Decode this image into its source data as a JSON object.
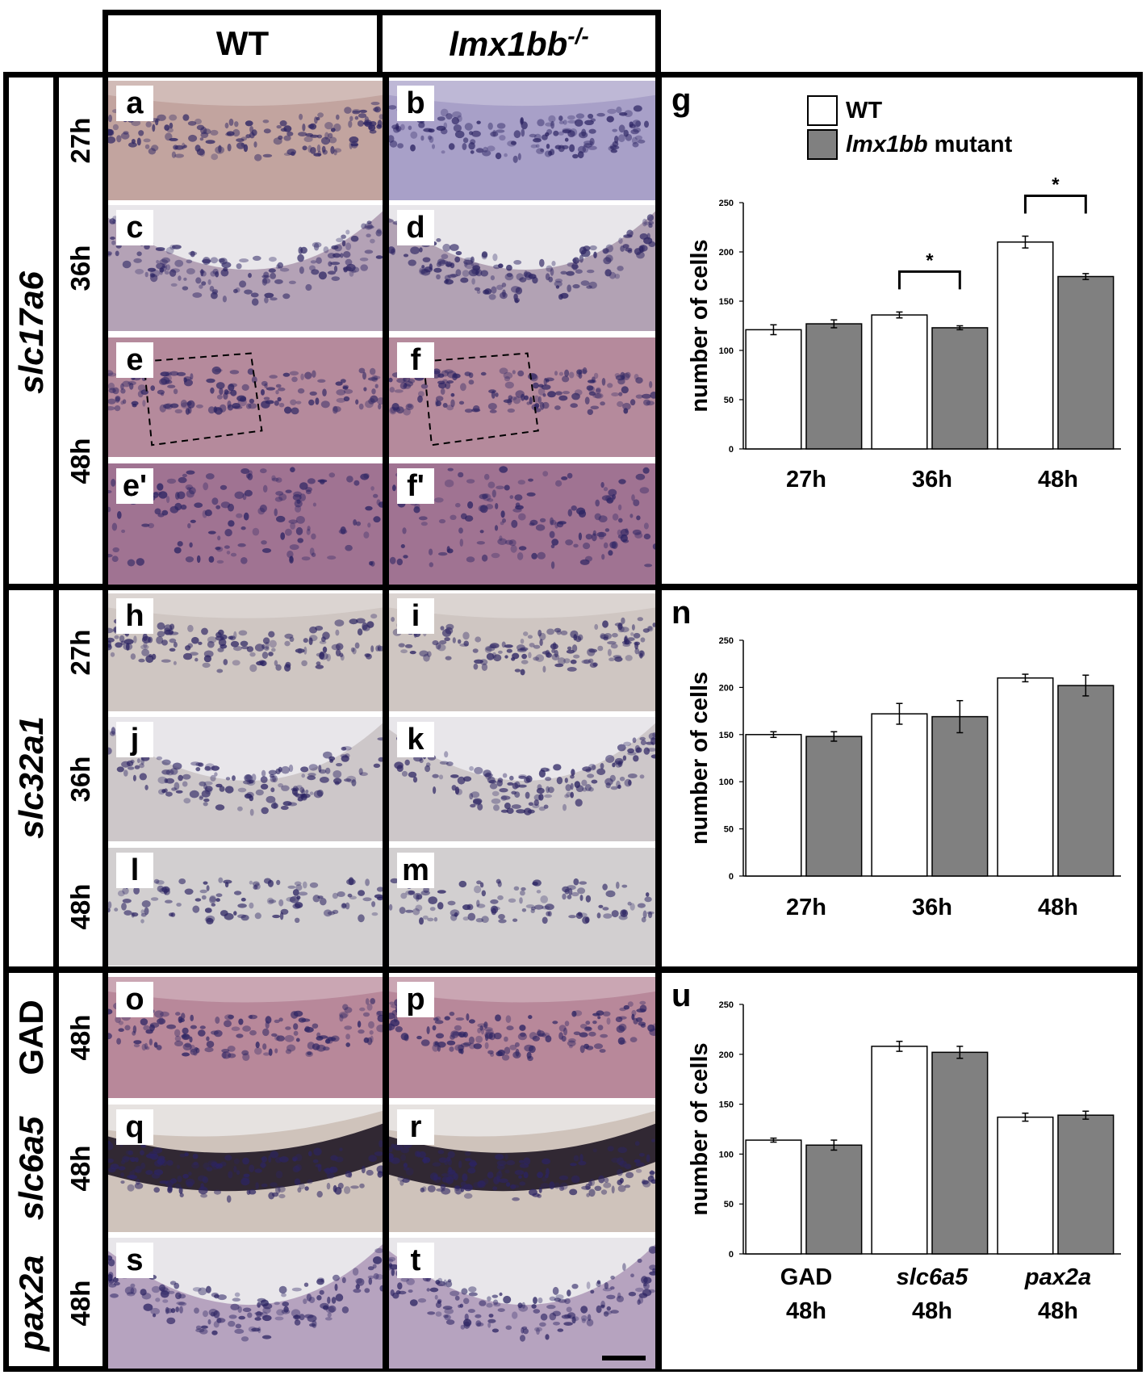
{
  "columns": {
    "wt": "WT",
    "mut_gene": "lmx1bb",
    "mut_sup": "-/-"
  },
  "rows": {
    "g1": "slc17a6",
    "g2": "slc32a1",
    "g3": "GAD",
    "g4": "slc6a5",
    "g5": "pax2a",
    "t27": "27h",
    "t36": "36h",
    "t48": "48h"
  },
  "panels": {
    "a": "a",
    "b": "b",
    "c": "c",
    "d": "d",
    "e": "e",
    "f": "f",
    "e2": "e'",
    "f2": "f'",
    "h": "h",
    "i": "i",
    "j": "j",
    "k": "k",
    "l": "l",
    "m": "m",
    "o": "o",
    "p": "p",
    "q": "q",
    "r": "r",
    "s": "s",
    "t": "t"
  },
  "legend": {
    "wt": "WT",
    "mut_italic": "lmx1bb",
    "mut_rest": " mutant"
  },
  "colors": {
    "wt_bar": "#ffffff",
    "mut_bar": "#808080",
    "stain": "#2c2463",
    "tissue_pink": "#b89aa8"
  },
  "chart_data": [
    {
      "panel": "g",
      "type": "bar",
      "ylabel": "number of cells",
      "ylim": [
        0,
        250
      ],
      "yticks": [
        0,
        50,
        100,
        150,
        200,
        250
      ],
      "categories": [
        "27h",
        "36h",
        "48h"
      ],
      "series": [
        {
          "key": "wt",
          "values": [
            121,
            136,
            210
          ],
          "errors": [
            5,
            3,
            6
          ]
        },
        {
          "key": "mut",
          "values": [
            127,
            123,
            175
          ],
          "errors": [
            4,
            2,
            3
          ]
        }
      ],
      "significance": [
        {
          "category": 1,
          "label": "*"
        },
        {
          "category": 2,
          "label": "*"
        }
      ]
    },
    {
      "panel": "n",
      "type": "bar",
      "ylabel": "number of cells",
      "ylim": [
        0,
        250
      ],
      "yticks": [
        0,
        50,
        100,
        150,
        200,
        250
      ],
      "categories": [
        "27h",
        "36h",
        "48h"
      ],
      "series": [
        {
          "key": "wt",
          "values": [
            150,
            172,
            210
          ],
          "errors": [
            3,
            11,
            4
          ]
        },
        {
          "key": "mut",
          "values": [
            148,
            169,
            202
          ],
          "errors": [
            5,
            17,
            11
          ]
        }
      ],
      "significance": []
    },
    {
      "panel": "u",
      "type": "bar",
      "ylabel": "number of cells",
      "ylim": [
        0,
        250
      ],
      "yticks": [
        0,
        50,
        100,
        150,
        200,
        250
      ],
      "categories": [
        "GAD",
        "slc6a5",
        "pax2a"
      ],
      "categories_italic": [
        false,
        true,
        true
      ],
      "category_sublabels": [
        "48h",
        "48h",
        "48h"
      ],
      "series": [
        {
          "key": "wt",
          "values": [
            114,
            208,
            137
          ],
          "errors": [
            2,
            5,
            4
          ]
        },
        {
          "key": "mut",
          "values": [
            109,
            202,
            139
          ],
          "errors": [
            5,
            6,
            4
          ]
        }
      ],
      "significance": []
    }
  ]
}
